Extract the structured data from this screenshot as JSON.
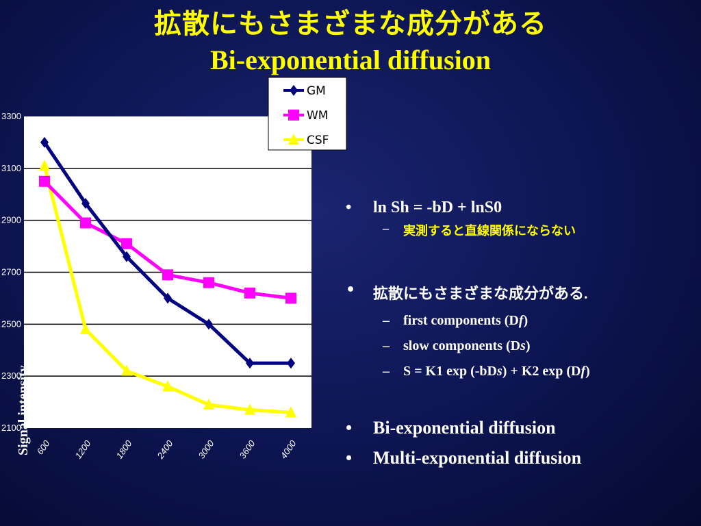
{
  "slide": {
    "title_jp": "拡散にもさまざまな成分がある",
    "title_en": "Bi-exponential diffusion"
  },
  "bullets": {
    "b1": "ln Sh = -bD + lnS0",
    "b1_sub": "実測すると直線関係にならない",
    "b2": "拡散にもさまざまな成分がある",
    "b2_punct": ".",
    "b2_sub1_pre": "first components (D",
    "b2_sub1_em": "f",
    "b2_sub1_post": ")",
    "b2_sub2_pre": "slow components (D",
    "b2_sub2_em": "s",
    "b2_sub2_post": ")",
    "b2_sub3_a": "S = K1 exp (-bD",
    "b2_sub3_em1": "s",
    "b2_sub3_b": ") + K2 exp (D",
    "b2_sub3_em2": "f",
    "b2_sub3_c": ")",
    "b3": "Bi-exponential diffusion",
    "b4": "Multi-exponential diffusion"
  },
  "colors": {
    "background": "#0c1450",
    "title": "#ffff00",
    "GM": "#000080",
    "WM": "#ff00ff",
    "CSF": "#ffff00"
  },
  "chart_data": {
    "type": "line",
    "x": [
      600,
      1200,
      1800,
      2400,
      3000,
      3600,
      4000
    ],
    "x_tick_labels": [
      "600",
      "1200",
      "1800",
      "2400",
      "3000",
      "3600",
      "4000"
    ],
    "y_tick_labels": [
      "3300",
      "3100",
      "2900",
      "2700",
      "2500",
      "2300",
      "2100"
    ],
    "ylim": [
      2100,
      3300
    ],
    "ylabel": "Signal intensity",
    "grid": "horizontal",
    "legend_position": "top-right",
    "series": [
      {
        "name": "GM",
        "marker": "diamond",
        "values": [
          3200,
          2965,
          2760,
          2600,
          2500,
          2350,
          2350
        ]
      },
      {
        "name": "WM",
        "marker": "square",
        "values": [
          3050,
          2890,
          2810,
          2690,
          2660,
          2620,
          2600
        ]
      },
      {
        "name": "CSF",
        "marker": "triangle",
        "values": [
          3110,
          2480,
          2320,
          2260,
          2190,
          2170,
          2160
        ]
      }
    ]
  }
}
